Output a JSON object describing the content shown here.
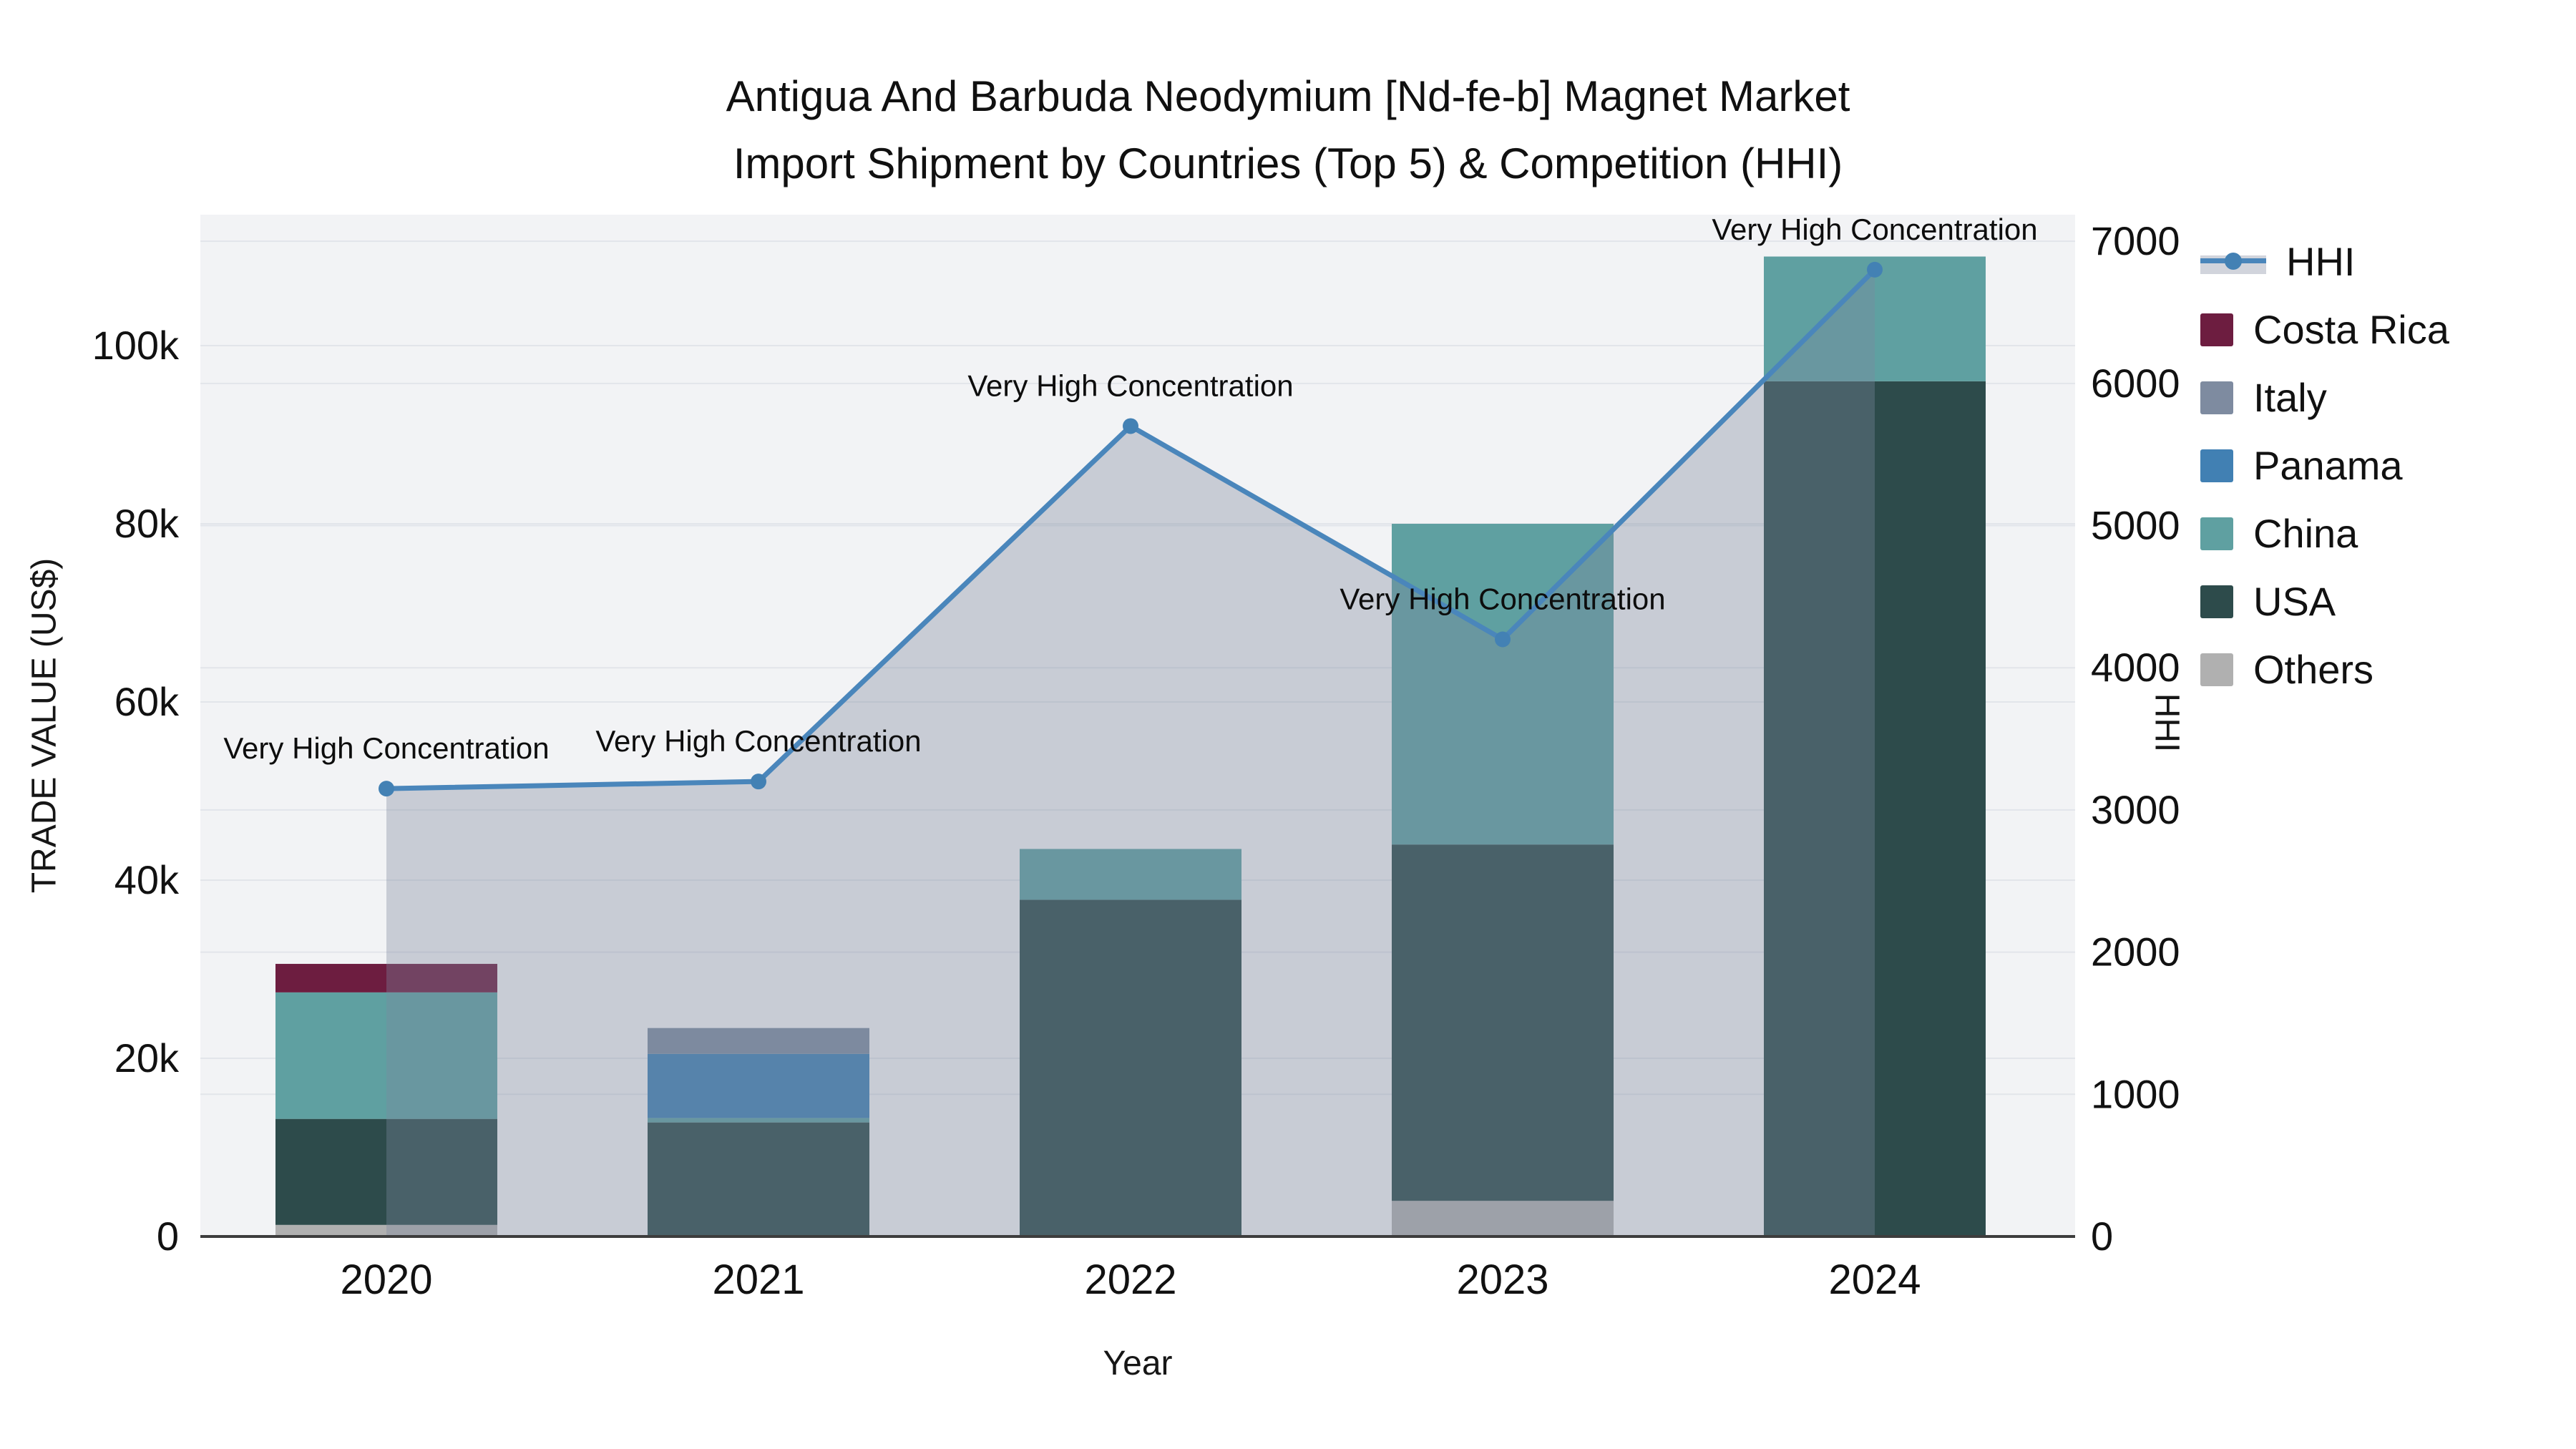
{
  "title": {
    "line1": "Antigua And Barbuda Neodymium [Nd-fe-b] Magnet Market",
    "line2": "Import Shipment by Countries (Top 5) & Competition (HHI)"
  },
  "axes": {
    "x_title": "Year",
    "y_left_title": "TRADE VALUE (US$)",
    "y_right_title": "HHI",
    "y_left_tick_labels": [
      "0",
      "20k",
      "40k",
      "60k",
      "80k",
      "100k"
    ],
    "y_right_tick_labels": [
      "0",
      "1000",
      "2000",
      "3000",
      "4000",
      "5000",
      "6000",
      "7000"
    ]
  },
  "legend": {
    "items": [
      {
        "label": "HHI",
        "type": "line",
        "color": "#4a86bb"
      },
      {
        "label": "Costa Rica",
        "type": "swatch",
        "color": "#6d1d40"
      },
      {
        "label": "Italy",
        "type": "swatch",
        "color": "#7e8ba0"
      },
      {
        "label": "Panama",
        "type": "swatch",
        "color": "#4180b3"
      },
      {
        "label": "China",
        "type": "swatch",
        "color": "#5fa0a1"
      },
      {
        "label": "USA",
        "type": "swatch",
        "color": "#2d4b4b"
      },
      {
        "label": "Others",
        "type": "swatch",
        "color": "#b0b0b0"
      }
    ]
  },
  "chart_data": {
    "type": "combo-stacked-bar-line",
    "title": "Antigua And Barbuda Neodymium [Nd-fe-b] Magnet Market Import Shipment by Countries (Top 5) & Competition (HHI)",
    "categories": [
      "2020",
      "2021",
      "2022",
      "2023",
      "2024"
    ],
    "bar_stack_order_bottom_to_top": [
      "Others",
      "USA",
      "China",
      "Panama",
      "Italy",
      "Costa Rica"
    ],
    "series": [
      {
        "name": "Others",
        "color": "#b0b0b0",
        "values": [
          1300,
          0,
          0,
          4000,
          0
        ]
      },
      {
        "name": "USA",
        "color": "#2d4b4b",
        "values": [
          11900,
          12800,
          37800,
          40000,
          96000
        ]
      },
      {
        "name": "China",
        "color": "#5fa0a1",
        "values": [
          14200,
          500,
          5700,
          36000,
          14000
        ]
      },
      {
        "name": "Panama",
        "color": "#4180b3",
        "values": [
          0,
          7200,
          0,
          0,
          0
        ]
      },
      {
        "name": "Italy",
        "color": "#7e8ba0",
        "values": [
          0,
          2900,
          0,
          0,
          0
        ]
      },
      {
        "name": "Costa Rica",
        "color": "#6d1d40",
        "values": [
          3200,
          0,
          0,
          0,
          0
        ]
      }
    ],
    "bar_totals": [
      30600,
      23400,
      43500,
      80000,
      110000
    ],
    "line_series": {
      "name": "HHI",
      "axis": "right",
      "color": "#4a86bb",
      "marker_color": "#4381b4",
      "area_fill": "rgba(126,136,157,0.36)",
      "values": [
        3150,
        3200,
        5700,
        4200,
        6800
      ]
    },
    "annotations": [
      {
        "x": "2020",
        "text": "Very High Concentration"
      },
      {
        "x": "2021",
        "text": "Very High Concentration"
      },
      {
        "x": "2022",
        "text": "Very High Concentration"
      },
      {
        "x": "2023",
        "text": "Very High Concentration"
      },
      {
        "x": "2024",
        "text": "Very High Concentration"
      }
    ],
    "xlabel": "Year",
    "ylabel": "TRADE VALUE (US$)",
    "y2label": "HHI",
    "ylim": [
      0,
      114700
    ],
    "y2lim": [
      0,
      7187
    ],
    "y_left_tick_step": 20000,
    "y_right_tick_step": 1000,
    "grid": {
      "left_gridlines_every": 20000,
      "right_gridlines_every": 1000,
      "grid_on": true
    },
    "legend_position": "right",
    "plot_bg": "#f2f3f5",
    "gridline_color": "#e2e5ea",
    "axisline_color": "#3d3d3d"
  }
}
